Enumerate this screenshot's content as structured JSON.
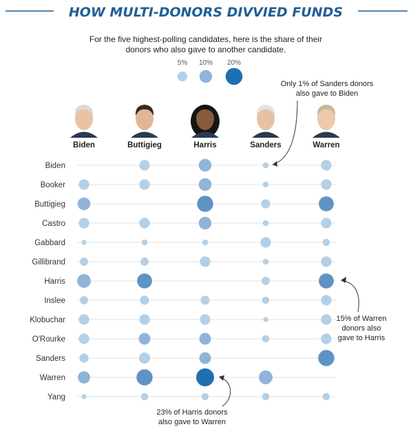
{
  "title": "HOW MULTI-DONORS DIVVIED FUNDS",
  "subtitle_line1": "For the five highest-polling candidates, here is the share of their",
  "subtitle_line2": "donors who also gave to another candidate.",
  "legend": [
    {
      "label": "5%",
      "value": 5
    },
    {
      "label": "10%",
      "value": 10
    },
    {
      "label": "20%",
      "value": 20
    }
  ],
  "annotations": {
    "sanders": [
      "Only 1% of Sanders donors",
      "also gave to Biden"
    ],
    "warren": [
      "15% of Warren",
      "donors also",
      "gave to Harris"
    ],
    "harris": [
      "23% of Harris donors",
      "also gave to Warren"
    ]
  },
  "colors": {
    "title": "#1f5f95",
    "small": "#b3d0e6",
    "mid": "#8fb4d8",
    "large": "#5f93c4",
    "largest": "#1f70b2",
    "gridline": "#e6e6e6"
  },
  "chart_data": {
    "type": "bubble-matrix",
    "columns": [
      "Biden",
      "Buttigieg",
      "Harris",
      "Sanders",
      "Warren"
    ],
    "rows": [
      "Biden",
      "Booker",
      "Buttigieg",
      "Castro",
      "Gabbard",
      "Gillibrand",
      "Harris",
      "Inslee",
      "Klobuchar",
      "O'Rourke",
      "Sanders",
      "Warren",
      "Yang"
    ],
    "values": [
      [
        null,
        6,
        10,
        1,
        6
      ],
      [
        6,
        6,
        10,
        1,
        6
      ],
      [
        10,
        null,
        18,
        4,
        15
      ],
      [
        6,
        6,
        10,
        1,
        6
      ],
      [
        0.5,
        1,
        1,
        6,
        2
      ],
      [
        3,
        3,
        6,
        1,
        6
      ],
      [
        12,
        15,
        null,
        3,
        15
      ],
      [
        3,
        4,
        4,
        2,
        6
      ],
      [
        6,
        6,
        6,
        0.5,
        6
      ],
      [
        6,
        8,
        8,
        2,
        6
      ],
      [
        4,
        7,
        8,
        null,
        18
      ],
      [
        9,
        18,
        23,
        12,
        null
      ],
      [
        0.5,
        2,
        2,
        2,
        2
      ]
    ],
    "unit": "% of donors",
    "legend_placement": "top-center"
  }
}
